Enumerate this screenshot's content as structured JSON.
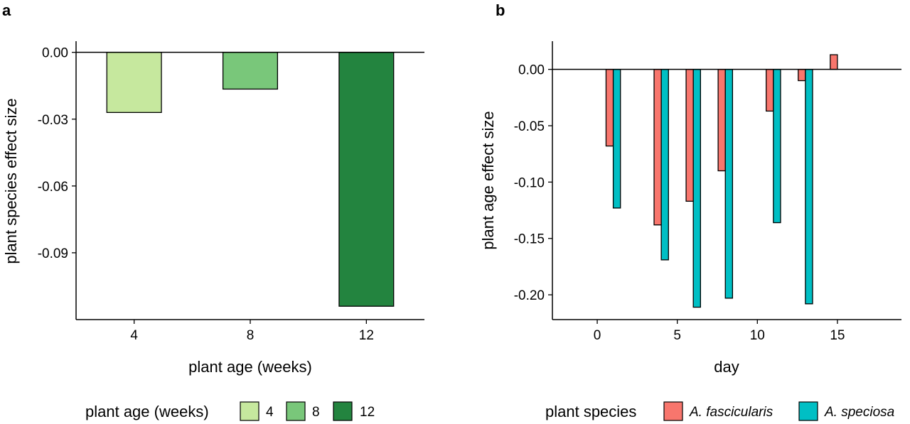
{
  "chart_data": [
    {
      "panel": "a",
      "type": "bar",
      "categories": [
        "4",
        "8",
        "12"
      ],
      "values": [
        -0.027,
        -0.0165,
        -0.114
      ],
      "colors": [
        "#c6e89e",
        "#79c77a",
        "#23843f"
      ],
      "xlabel": "plant age (weeks)",
      "ylabel": "plant species effect size",
      "ylim": [
        -0.12,
        0.005
      ],
      "yticks": [
        0.0,
        -0.03,
        -0.06,
        -0.09
      ],
      "ytick_labels": [
        "0.00",
        "-0.03",
        "-0.06",
        "-0.09"
      ],
      "grid": false,
      "legend": {
        "title": "plant age (weeks)",
        "position": "bottom",
        "items": [
          {
            "label": "4",
            "color": "#c6e89e"
          },
          {
            "label": "8",
            "color": "#79c77a"
          },
          {
            "label": "12",
            "color": "#23843f"
          }
        ]
      }
    },
    {
      "panel": "b",
      "type": "bar",
      "x": [
        1,
        4,
        6,
        8,
        11,
        13,
        15
      ],
      "series": [
        {
          "name": "A. fascicularis",
          "color": "#f8766d",
          "values": [
            -0.068,
            -0.138,
            -0.117,
            -0.09,
            -0.037,
            -0.01,
            0.013
          ]
        },
        {
          "name": "A. speciosa",
          "color": "#00bfc4",
          "values": [
            -0.123,
            -0.169,
            -0.211,
            -0.203,
            -0.136,
            -0.208,
            null
          ]
        }
      ],
      "xlabel": "day",
      "ylabel": "plant age effect size",
      "xlim": [
        -2.8,
        19
      ],
      "ylim": [
        -0.222,
        0.025
      ],
      "xticks": [
        0,
        5,
        10,
        15
      ],
      "xtick_labels": [
        "0",
        "5",
        "10",
        "15"
      ],
      "yticks": [
        0.0,
        -0.05,
        -0.1,
        -0.15,
        -0.2
      ],
      "ytick_labels": [
        "0.00",
        "-0.05",
        "-0.10",
        "-0.15",
        "-0.20"
      ],
      "grid": false,
      "legend": {
        "title": "plant species",
        "position": "bottom",
        "items": [
          {
            "label": "A. fascicularis",
            "color": "#f8766d"
          },
          {
            "label": "A. speciosa",
            "color": "#00bfc4"
          }
        ]
      }
    }
  ]
}
